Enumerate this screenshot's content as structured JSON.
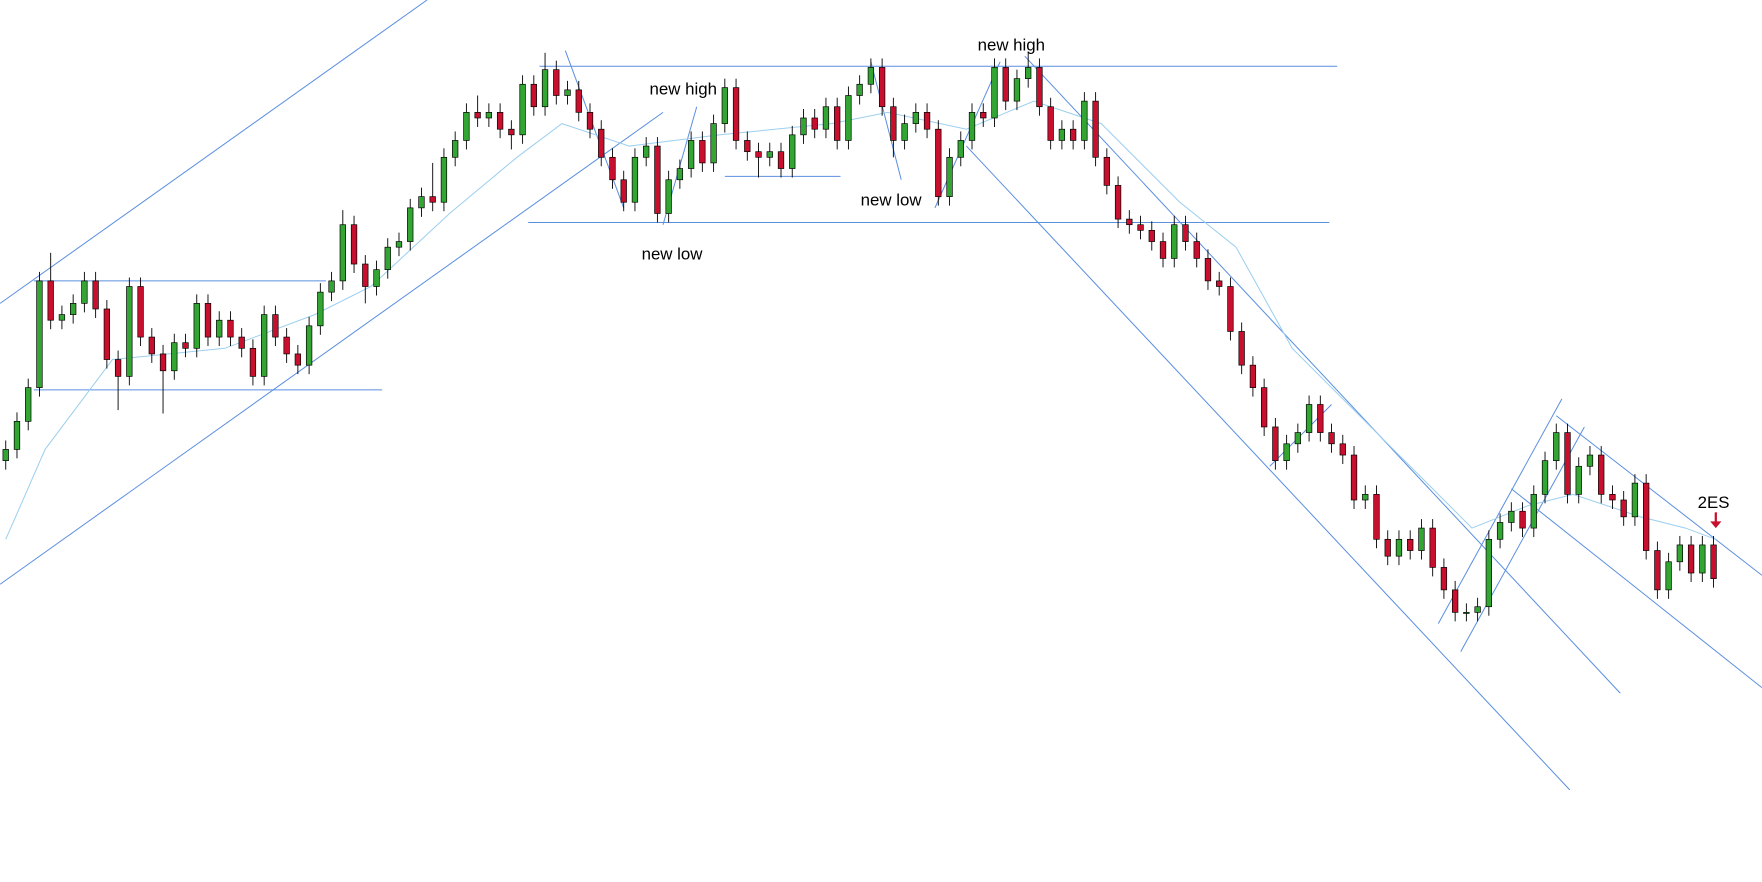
{
  "chart_data": {
    "type": "candlestick",
    "ylim": [
      0,
      785
    ],
    "up_color": "#33a533",
    "down_color": "#c8102e",
    "annotations": [
      "new high",
      "new high",
      "new low",
      "new low",
      "2ES"
    ],
    "open": [
      375,
      385,
      410,
      440,
      535,
      500,
      505,
      515,
      535,
      510,
      465,
      450,
      530,
      485,
      470,
      455,
      480,
      475,
      515,
      485,
      500,
      485,
      475,
      450,
      505,
      485,
      470,
      460,
      495,
      525,
      535,
      585,
      550,
      530,
      545,
      565,
      570,
      600,
      610,
      605,
      645,
      660,
      685,
      680,
      685,
      670,
      665,
      710,
      690,
      723,
      700,
      705,
      685,
      670,
      645,
      625,
      605,
      645,
      655,
      595,
      625,
      635,
      660,
      640,
      675,
      707,
      660,
      650,
      645,
      650,
      635,
      665,
      680,
      670,
      690,
      660,
      700,
      710,
      725,
      690,
      660,
      675,
      685,
      670,
      610,
      645,
      660,
      685,
      680,
      725,
      695,
      715,
      725,
      690,
      660,
      670,
      660,
      695,
      645,
      620,
      590,
      585,
      580,
      570,
      555,
      585,
      570,
      555,
      535,
      530,
      490,
      460,
      440,
      405,
      375,
      390,
      400,
      425,
      400,
      390,
      380,
      340,
      345,
      305,
      290,
      305,
      295,
      315,
      280,
      260,
      240,
      240,
      245,
      305,
      320,
      330,
      315,
      345,
      375,
      400,
      345,
      370,
      380,
      345,
      340,
      325,
      355,
      295,
      260,
      285,
      300,
      275,
      300
    ],
    "high": [
      393,
      418,
      448,
      543,
      560,
      513,
      523,
      543,
      543,
      518,
      473,
      538,
      538,
      493,
      478,
      488,
      488,
      523,
      523,
      508,
      508,
      493,
      483,
      513,
      513,
      493,
      478,
      503,
      533,
      543,
      598,
      593,
      558,
      553,
      573,
      578,
      608,
      618,
      640,
      653,
      668,
      693,
      700,
      693,
      693,
      678,
      718,
      718,
      738,
      731,
      713,
      713,
      693,
      678,
      653,
      633,
      653,
      663,
      663,
      633,
      643,
      668,
      668,
      683,
      715,
      715,
      668,
      658,
      658,
      658,
      673,
      688,
      688,
      698,
      698,
      708,
      718,
      733,
      733,
      698,
      683,
      693,
      693,
      678,
      653,
      668,
      693,
      693,
      733,
      733,
      723,
      738,
      733,
      698,
      678,
      678,
      703,
      703,
      653,
      628,
      598,
      593,
      588,
      578,
      593,
      593,
      578,
      563,
      543,
      538,
      498,
      468,
      448,
      413,
      398,
      408,
      433,
      433,
      408,
      398,
      388,
      353,
      353,
      313,
      313,
      313,
      323,
      323,
      288,
      268,
      248,
      253,
      313,
      328,
      338,
      338,
      353,
      383,
      408,
      408,
      378,
      388,
      388,
      353,
      348,
      363,
      363,
      303,
      293,
      308,
      308,
      308,
      308
    ],
    "low": [
      367,
      377,
      402,
      432,
      492,
      492,
      497,
      507,
      502,
      457,
      420,
      442,
      477,
      462,
      417,
      447,
      467,
      467,
      477,
      477,
      477,
      467,
      442,
      442,
      477,
      462,
      452,
      452,
      487,
      517,
      527,
      542,
      515,
      522,
      537,
      557,
      562,
      592,
      597,
      597,
      637,
      652,
      672,
      672,
      662,
      652,
      657,
      682,
      682,
      692,
      692,
      677,
      662,
      637,
      617,
      597,
      597,
      637,
      587,
      587,
      617,
      627,
      632,
      632,
      667,
      652,
      642,
      627,
      637,
      627,
      627,
      657,
      662,
      662,
      652,
      652,
      692,
      702,
      682,
      645,
      652,
      667,
      662,
      602,
      602,
      637,
      652,
      672,
      672,
      687,
      687,
      707,
      682,
      652,
      652,
      652,
      652,
      637,
      612,
      582,
      577,
      572,
      562,
      547,
      547,
      562,
      547,
      527,
      522,
      482,
      452,
      432,
      397,
      367,
      367,
      382,
      392,
      392,
      382,
      372,
      332,
      332,
      297,
      282,
      282,
      287,
      287,
      272,
      252,
      232,
      232,
      232,
      237,
      297,
      312,
      307,
      307,
      337,
      367,
      337,
      337,
      362,
      337,
      332,
      317,
      317,
      287,
      252,
      252,
      277,
      267,
      267,
      262
    ],
    "close": [
      385,
      410,
      440,
      535,
      500,
      505,
      515,
      535,
      510,
      465,
      450,
      530,
      485,
      470,
      455,
      480,
      475,
      515,
      485,
      500,
      485,
      475,
      450,
      505,
      485,
      470,
      460,
      495,
      525,
      535,
      585,
      550,
      530,
      545,
      565,
      570,
      600,
      610,
      605,
      645,
      660,
      685,
      680,
      685,
      670,
      665,
      710,
      690,
      723,
      700,
      705,
      685,
      670,
      645,
      625,
      605,
      645,
      655,
      595,
      625,
      635,
      660,
      640,
      675,
      707,
      660,
      650,
      645,
      650,
      635,
      665,
      680,
      670,
      690,
      660,
      700,
      710,
      725,
      690,
      660,
      675,
      685,
      670,
      610,
      645,
      660,
      685,
      680,
      725,
      695,
      715,
      725,
      690,
      660,
      670,
      660,
      695,
      645,
      620,
      590,
      585,
      580,
      570,
      555,
      585,
      570,
      555,
      535,
      530,
      490,
      460,
      440,
      405,
      375,
      390,
      400,
      425,
      400,
      390,
      380,
      340,
      345,
      305,
      290,
      305,
      295,
      315,
      280,
      260,
      240,
      240,
      245,
      305,
      320,
      330,
      315,
      345,
      375,
      400,
      345,
      370,
      380,
      345,
      340,
      325,
      355,
      295,
      260,
      285,
      300,
      275,
      300,
      270
    ]
  }
}
